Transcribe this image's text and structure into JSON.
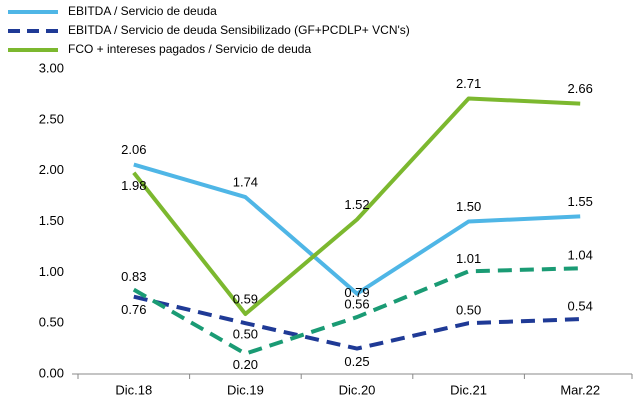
{
  "chart_data": {
    "type": "line",
    "categories": [
      "Dic.18",
      "Dic.19",
      "Dic.20",
      "Dic.21",
      "Mar.22"
    ],
    "series": [
      {
        "name": "EBITDA / Servicio de deuda",
        "color": "#4fb6e6",
        "dash": false,
        "values": [
          2.06,
          1.74,
          0.79,
          1.5,
          1.55
        ],
        "value_labels": [
          "2.06",
          "1.74",
          "0.79",
          "1.50",
          "1.55"
        ]
      },
      {
        "name": "EBITDA / Servicio de deuda Sensibilizado (GF+PCDLP+ VCN's)",
        "color": "#1f3a96",
        "dash": true,
        "values": [
          0.76,
          0.5,
          0.25,
          0.5,
          0.54
        ],
        "value_labels": [
          "0.76",
          "0.50",
          "0.25",
          "0.50",
          "0.54"
        ]
      },
      {
        "name": "FCO + intereses pagados / Servicio de deuda",
        "color": "#7cb82f",
        "dash": false,
        "values": [
          1.98,
          0.59,
          1.52,
          2.71,
          2.66
        ],
        "value_labels": [
          "1.98",
          "0.59",
          "1.52",
          "2.71",
          "2.66"
        ]
      },
      {
        "color": "#1a9b74",
        "dash": true,
        "values": [
          0.83,
          0.2,
          0.56,
          1.01,
          1.04
        ],
        "value_labels": [
          "0.83",
          "0.20",
          "0.56",
          "1.01",
          "1.04"
        ]
      }
    ],
    "ylim": [
      0,
      3
    ],
    "yticks": [
      {
        "value": 0,
        "label": "0.00"
      },
      {
        "value": 0.5,
        "label": "0.50"
      },
      {
        "value": 1,
        "label": "1.00"
      },
      {
        "value": 1.5,
        "label": "1.50"
      },
      {
        "value": 2,
        "label": "2.00"
      },
      {
        "value": 2.5,
        "label": "2.50"
      },
      {
        "value": 3,
        "label": "3.00"
      }
    ],
    "grid": false
  }
}
